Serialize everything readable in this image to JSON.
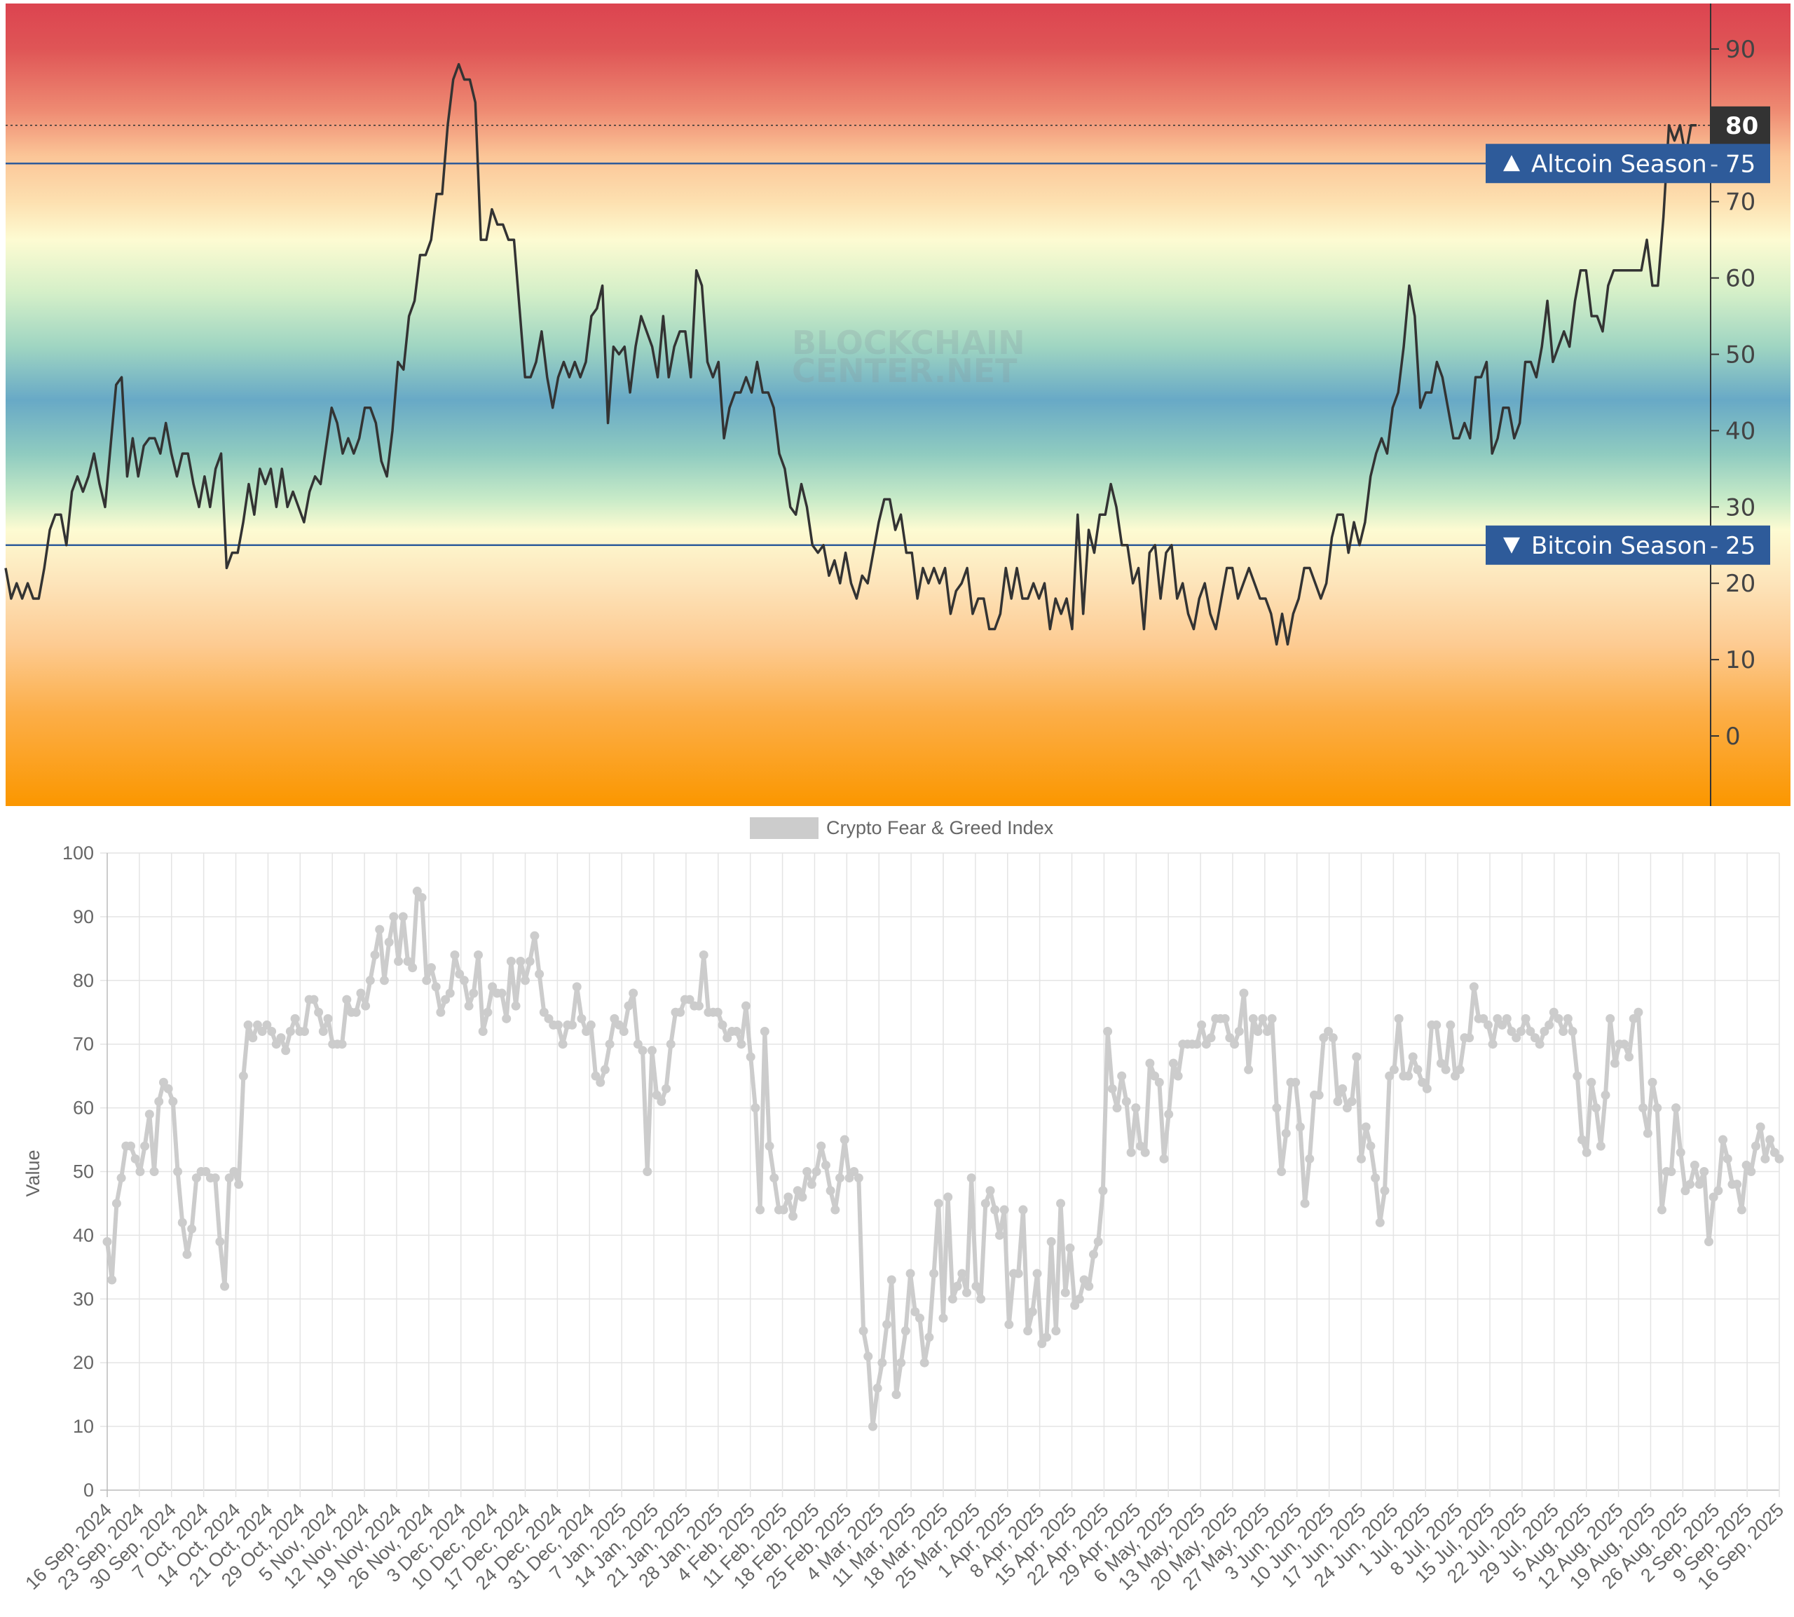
{
  "chart_data": [
    {
      "type": "line",
      "watermark": "BLOCKCHAIN CENTER.NET",
      "y_ticks": [
        0,
        10,
        20,
        30,
        40,
        50,
        60,
        70,
        80,
        90
      ],
      "ylim": [
        -9,
        96
      ],
      "grid": false,
      "background": "value-banded gradient (red high, blue mid, orange low)",
      "line_color": "#333333",
      "current_value": {
        "value": 80,
        "label": "80"
      },
      "thresholds": [
        {
          "name": "altcoin",
          "value": 75,
          "label": "Altcoin Season",
          "value_label": "75",
          "icon": "triangle-up-icon",
          "color": "#2e5b9a"
        },
        {
          "name": "bitcoin",
          "value": 25,
          "label": "Bitcoin Season",
          "value_label": "25",
          "icon": "triangle-down-icon",
          "color": "#2e5b9a"
        }
      ],
      "values": [
        22,
        18,
        20,
        18,
        20,
        18,
        18,
        22,
        27,
        29,
        29,
        25,
        32,
        34,
        32,
        34,
        37,
        33,
        30,
        38,
        46,
        47,
        34,
        39,
        34,
        38,
        39,
        39,
        37,
        41,
        37,
        34,
        37,
        37,
        33,
        30,
        34,
        30,
        35,
        37,
        22,
        24,
        24,
        28,
        33,
        29,
        35,
        33,
        35,
        30,
        35,
        30,
        32,
        30,
        28,
        32,
        34,
        33,
        38,
        43,
        41,
        37,
        39,
        37,
        39,
        43,
        43,
        41,
        36,
        34,
        40,
        49,
        48,
        55,
        57,
        63,
        63,
        65,
        71,
        71,
        80,
        86,
        88,
        86,
        86,
        83,
        65,
        65,
        69,
        67,
        67,
        65,
        65,
        56,
        47,
        47,
        49,
        53,
        47,
        43,
        47,
        49,
        47,
        49,
        47,
        49,
        55,
        56,
        59,
        41,
        51,
        50,
        51,
        45,
        51,
        55,
        53,
        51,
        47,
        55,
        47,
        51,
        53,
        53,
        47,
        61,
        59,
        49,
        47,
        49,
        39,
        43,
        45,
        45,
        47,
        45,
        49,
        45,
        45,
        43,
        37,
        35,
        30,
        29,
        33,
        30,
        25,
        24,
        25,
        21,
        23,
        20,
        24,
        20,
        18,
        21,
        20,
        24,
        28,
        31,
        31,
        27,
        29,
        24,
        24,
        18,
        22,
        20,
        22,
        20,
        22,
        16,
        19,
        20,
        22,
        16,
        18,
        18,
        14,
        14,
        16,
        22,
        18,
        22,
        18,
        18,
        20,
        18,
        20,
        14,
        18,
        16,
        18,
        14,
        29,
        16,
        27,
        24,
        29,
        29,
        33,
        30,
        25,
        25,
        20,
        22,
        14,
        24,
        25,
        18,
        24,
        25,
        18,
        20,
        16,
        14,
        18,
        20,
        16,
        14,
        18,
        22,
        22,
        18,
        20,
        22,
        20,
        18,
        18,
        16,
        12,
        16,
        12,
        16,
        18,
        22,
        22,
        20,
        18,
        20,
        26,
        29,
        29,
        24,
        28,
        25,
        28,
        34,
        37,
        39,
        37,
        43,
        45,
        51,
        59,
        55,
        43,
        45,
        45,
        49,
        47,
        43,
        39,
        39,
        41,
        39,
        47,
        47,
        49,
        37,
        39,
        43,
        43,
        39,
        41,
        49,
        49,
        47,
        51,
        57,
        49,
        51,
        53,
        51,
        57,
        61,
        61,
        55,
        55,
        53,
        59,
        61,
        61,
        61,
        61,
        61,
        61,
        65,
        59,
        59,
        68,
        80,
        78,
        80,
        76,
        80,
        80
      ]
    },
    {
      "type": "line",
      "legend": [
        {
          "name": "Crypto Fear & Greed Index",
          "color": "#cccccc"
        }
      ],
      "legend_position": "top-center",
      "ylabel": "Value",
      "xlabel": "",
      "ylim": [
        0,
        100
      ],
      "y_ticks": [
        "0",
        "10",
        "20",
        "30",
        "40",
        "50",
        "60",
        "70",
        "80",
        "90",
        "100"
      ],
      "grid": true,
      "x_ticks": [
        "16 Sep, 2024",
        "23 Sep, 2024",
        "30 Sep, 2024",
        "7 Oct, 2024",
        "14 Oct, 2024",
        "21 Oct, 2024",
        "29 Oct, 2024",
        "5 Nov, 2024",
        "12 Nov, 2024",
        "19 Nov, 2024",
        "26 Nov, 2024",
        "3 Dec, 2024",
        "10 Dec, 2024",
        "17 Dec, 2024",
        "24 Dec, 2024",
        "31 Dec, 2024",
        "7 Jan, 2025",
        "14 Jan, 2025",
        "21 Jan, 2025",
        "28 Jan, 2025",
        "4 Feb, 2025",
        "11 Feb, 2025",
        "18 Feb, 2025",
        "25 Feb, 2025",
        "4 Mar, 2025",
        "11 Mar, 2025",
        "18 Mar, 2025",
        "25 Mar, 2025",
        "1 Apr, 2025",
        "8 Apr, 2025",
        "15 Apr, 2025",
        "22 Apr, 2025",
        "29 Apr, 2025",
        "6 May, 2025",
        "13 May, 2025",
        "20 May, 2025",
        "27 May, 2025",
        "3 Jun, 2025",
        "10 Jun, 2025",
        "17 Jun, 2025",
        "24 Jun, 2025",
        "1 Jul, 2025",
        "8 Jul, 2025",
        "15 Jul, 2025",
        "22 Jul, 2025",
        "29 Jul, 2025",
        "5 Aug, 2025",
        "12 Aug, 2025",
        "19 Aug, 2025",
        "26 Aug, 2025",
        "2 Sep, 2025",
        "9 Sep, 2025",
        "16 Sep, 2025"
      ],
      "values": [
        39,
        33,
        45,
        49,
        54,
        54,
        52,
        50,
        54,
        59,
        50,
        61,
        64,
        63,
        61,
        50,
        42,
        37,
        41,
        49,
        50,
        50,
        49,
        49,
        39,
        32,
        49,
        50,
        48,
        65,
        73,
        71,
        73,
        72,
        73,
        72,
        70,
        71,
        69,
        72,
        74,
        72,
        72,
        77,
        77,
        75,
        72,
        74,
        70,
        70,
        70,
        77,
        75,
        75,
        78,
        76,
        80,
        84,
        88,
        80,
        86,
        90,
        83,
        90,
        83,
        82,
        94,
        93,
        80,
        82,
        79,
        75,
        77,
        78,
        84,
        81,
        80,
        76,
        78,
        84,
        72,
        75,
        79,
        78,
        78,
        74,
        83,
        76,
        83,
        80,
        83,
        87,
        81,
        75,
        74,
        73,
        73,
        70,
        73,
        73,
        79,
        74,
        72,
        73,
        65,
        64,
        66,
        70,
        74,
        73,
        72,
        76,
        78,
        70,
        69,
        50,
        69,
        62,
        61,
        63,
        70,
        75,
        75,
        77,
        77,
        76,
        76,
        84,
        75,
        75,
        75,
        73,
        71,
        72,
        72,
        70,
        76,
        68,
        60,
        44,
        72,
        54,
        49,
        44,
        44,
        46,
        43,
        47,
        46,
        50,
        48,
        50,
        54,
        51,
        47,
        44,
        49,
        55,
        49,
        50,
        49,
        25,
        21,
        10,
        16,
        20,
        26,
        33,
        15,
        20,
        25,
        34,
        28,
        27,
        20,
        24,
        34,
        45,
        27,
        46,
        30,
        32,
        34,
        31,
        49,
        32,
        30,
        45,
        47,
        44,
        40,
        44,
        26,
        34,
        34,
        44,
        25,
        28,
        34,
        23,
        24,
        39,
        25,
        45,
        31,
        38,
        29,
        30,
        33,
        32,
        37,
        39,
        47,
        72,
        63,
        60,
        65,
        61,
        53,
        60,
        54,
        53,
        67,
        65,
        64,
        52,
        59,
        67,
        65,
        70,
        70,
        70,
        70,
        73,
        70,
        71,
        74,
        74,
        74,
        71,
        70,
        72,
        78,
        66,
        74,
        72,
        74,
        72,
        74,
        60,
        50,
        56,
        64,
        64,
        57,
        45,
        52,
        62,
        62,
        71,
        72,
        71,
        61,
        63,
        60,
        61,
        68,
        52,
        57,
        54,
        49,
        42,
        47,
        65,
        66,
        74,
        65,
        65,
        68,
        66,
        64,
        63,
        73,
        73,
        67,
        66,
        73,
        65,
        66,
        71,
        71,
        79,
        74,
        74,
        73,
        70,
        74,
        73,
        74,
        72,
        71,
        72,
        74,
        72,
        71,
        70,
        72,
        73,
        75,
        74,
        72,
        74,
        72,
        65,
        55,
        53,
        64,
        60,
        54,
        62,
        74,
        67,
        70,
        70,
        68,
        74,
        75,
        60,
        56,
        64,
        60,
        44,
        50,
        50,
        60,
        53,
        47,
        48,
        51,
        48,
        50,
        39,
        46,
        47,
        55,
        52,
        48,
        48,
        44,
        51,
        50,
        54,
        57,
        52,
        55,
        53,
        52
      ]
    }
  ]
}
